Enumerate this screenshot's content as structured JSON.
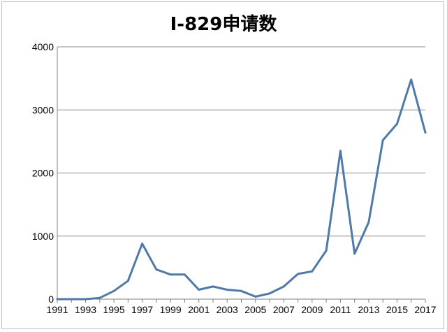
{
  "chart_data": {
    "type": "line",
    "title": "I-829申请数",
    "xlabel": "",
    "ylabel": "",
    "ylim": [
      0,
      4000
    ],
    "yticks": [
      0,
      1000,
      2000,
      3000,
      4000
    ],
    "xlim": [
      1991,
      2017
    ],
    "xticks": [
      1991,
      1993,
      1995,
      1997,
      1999,
      2001,
      2003,
      2005,
      2007,
      2009,
      2011,
      2013,
      2015,
      2017
    ],
    "grid": true,
    "legend": "none",
    "series": [
      {
        "color": "#4f79a8",
        "x": [
          1991,
          1992,
          1993,
          1994,
          1995,
          1996,
          1997,
          1998,
          1999,
          2000,
          2001,
          2002,
          2003,
          2004,
          2005,
          2006,
          2007,
          2008,
          2009,
          2010,
          2011,
          2012,
          2013,
          2014,
          2015,
          2016,
          2017
        ],
        "values": [
          0,
          0,
          0,
          20,
          130,
          290,
          880,
          470,
          390,
          390,
          150,
          200,
          150,
          130,
          40,
          90,
          200,
          400,
          440,
          770,
          2350,
          720,
          1220,
          2520,
          2780,
          3480,
          2640
        ]
      }
    ]
  }
}
